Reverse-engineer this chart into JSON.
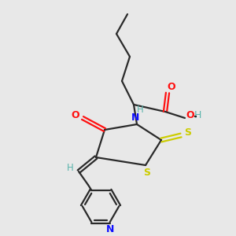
{
  "background_color": "#e8e8e8",
  "bond_color": "#2a2a2a",
  "nitrogen_color": "#1010ff",
  "oxygen_color": "#ff1010",
  "sulfur_color": "#cccc00",
  "carbon_color": "#2a2a2a",
  "h_color": "#5ab4ac",
  "figsize": [
    3.0,
    3.0
  ],
  "dpi": 100,
  "xlim": [
    0,
    10
  ],
  "ylim": [
    0,
    10
  ]
}
